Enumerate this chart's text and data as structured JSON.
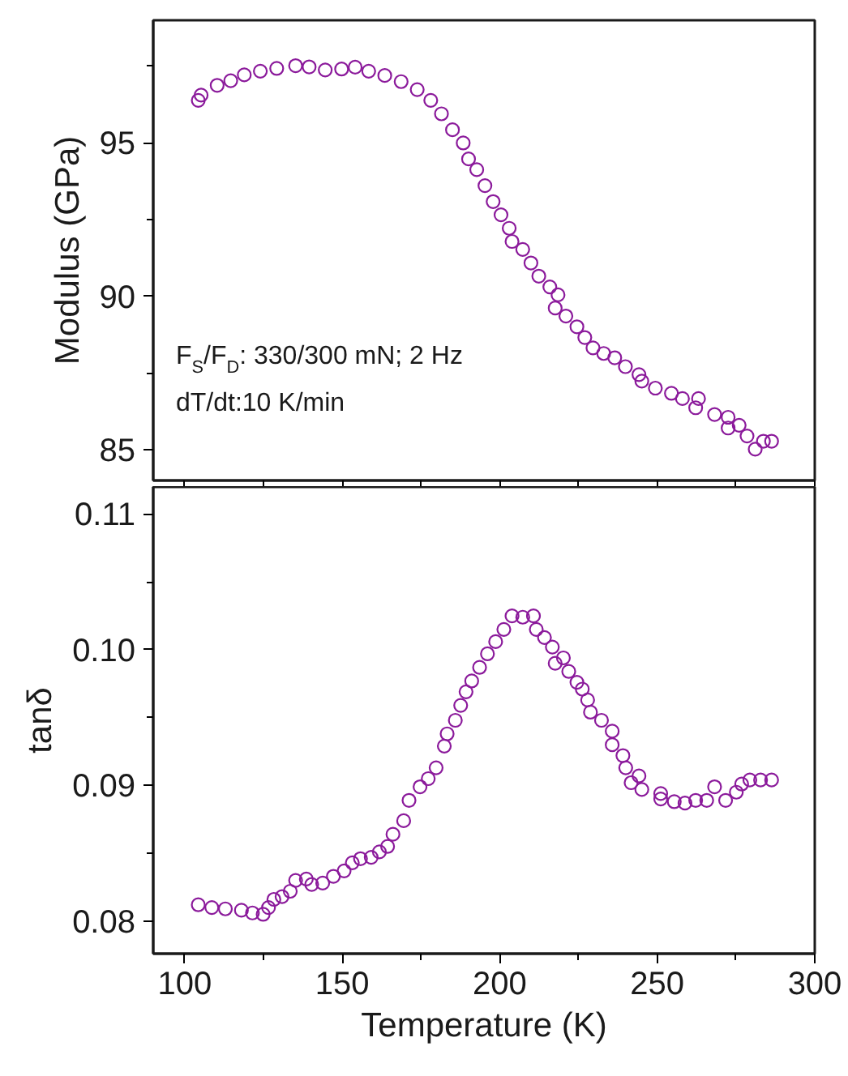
{
  "chart_data": [
    {
      "type": "scatter",
      "ylabel": "Modulus (GPa)",
      "marker": "circle",
      "tick_labels": "y",
      "xlim": [
        90,
        300
      ],
      "ylim": [
        84,
        99
      ],
      "xticks": [
        {
          "value": 100,
          "label": null
        },
        {
          "value": 125,
          "label": null
        },
        {
          "value": 150,
          "label": null
        },
        {
          "value": 175,
          "label": null
        },
        {
          "value": 200,
          "label": null
        },
        {
          "value": 225,
          "label": null
        },
        {
          "value": 250,
          "label": null
        },
        {
          "value": 275,
          "label": null
        },
        {
          "value": 300,
          "label": null
        }
      ],
      "yticks": [
        85,
        {
          "value": 87.5,
          "label": null
        },
        90,
        {
          "value": 92.5,
          "label": null
        },
        95,
        {
          "value": 97.5,
          "label": null
        }
      ],
      "annotations": [
        "F$_{S}$/F$_{D}$: 330/300 mN; 2 Hz",
        "dT/dt:10 K/min"
      ],
      "x": [
        104.3,
        105.2,
        110.3,
        114.6,
        118.9,
        124.0,
        129.2,
        135.2,
        139.5,
        144.6,
        149.8,
        154.1,
        158.4,
        163.5,
        168.7,
        173.8,
        178.1,
        181.5,
        185.0,
        188.4,
        190.1,
        192.7,
        195.3,
        197.9,
        200.4,
        203.0,
        203.9,
        207.3,
        209.9,
        212.4,
        215.9,
        218.5,
        217.6,
        221.0,
        224.5,
        227.0,
        229.6,
        233.0,
        236.5,
        239.9,
        244.2,
        245.1,
        249.4,
        254.5,
        258.0,
        262.2,
        263.1,
        268.2,
        272.5,
        272.5,
        276.0,
        278.5,
        281.1,
        283.7,
        286.3
      ],
      "series": [
        {
          "color": "#8b1a9b",
          "values": [
            96.39,
            96.56,
            96.88,
            97.03,
            97.22,
            97.34,
            97.43,
            97.52,
            97.48,
            97.38,
            97.41,
            97.47,
            97.34,
            97.2,
            97.0,
            96.74,
            96.39,
            95.95,
            95.43,
            95.0,
            94.48,
            94.13,
            93.61,
            93.09,
            92.66,
            92.22,
            91.79,
            91.53,
            91.09,
            90.66,
            90.31,
            90.05,
            89.62,
            89.36,
            89.01,
            88.66,
            88.32,
            88.14,
            88.0,
            87.71,
            87.45,
            87.24,
            87.01,
            86.84,
            86.67,
            86.37,
            86.67,
            86.15,
            86.06,
            85.71,
            85.8,
            85.45,
            85.02,
            85.28,
            85.28
          ]
        }
      ]
    },
    {
      "type": "scatter",
      "xlabel": "Temperature (K)",
      "ylabel": "tanδ",
      "marker": "circle",
      "xlim": [
        90,
        300
      ],
      "ylim": [
        0.0776,
        0.112
      ],
      "xticks": [
        100,
        {
          "value": 125,
          "label": null
        },
        150,
        {
          "value": 175,
          "label": null
        },
        200,
        {
          "value": 225,
          "label": null
        },
        250,
        {
          "value": 275,
          "label": null
        },
        300
      ],
      "yticks": [
        {
          "value": 0.08,
          "label": "0.08"
        },
        {
          "value": 0.085,
          "label": null
        },
        {
          "value": 0.09,
          "label": "0.09"
        },
        {
          "value": 0.095,
          "label": null
        },
        {
          "value": 0.1,
          "label": "0.10"
        },
        {
          "value": 0.105,
          "label": null
        },
        {
          "value": 0.11,
          "label": "0.11"
        }
      ],
      "x": [
        104.3,
        108.6,
        112.9,
        118.0,
        121.5,
        124.9,
        126.6,
        128.3,
        130.9,
        133.5,
        135.2,
        138.6,
        140.3,
        143.8,
        147.2,
        150.6,
        153.2,
        155.8,
        159.2,
        161.8,
        164.4,
        166.1,
        169.5,
        171.2,
        174.7,
        177.3,
        179.8,
        182.4,
        183.3,
        185.9,
        187.6,
        189.3,
        191.1,
        193.6,
        196.1,
        198.7,
        201.3,
        203.9,
        207.3,
        210.7,
        211.6,
        214.2,
        216.7,
        217.6,
        220.2,
        221.9,
        224.5,
        226.2,
        227.9,
        228.8,
        232.3,
        235.7,
        235.7,
        239.1,
        240.0,
        241.7,
        244.2,
        245.1,
        251.1,
        251.1,
        255.4,
        258.8,
        262.2,
        265.7,
        268.2,
        271.7,
        275.1,
        276.8,
        279.4,
        282.8,
        286.3
      ],
      "series": [
        {
          "color": "#8b1a9b",
          "values": [
            0.0812,
            0.081,
            0.0809,
            0.0808,
            0.0806,
            0.0805,
            0.081,
            0.0816,
            0.0818,
            0.0822,
            0.083,
            0.0831,
            0.0827,
            0.0828,
            0.0833,
            0.0837,
            0.0843,
            0.0846,
            0.0847,
            0.0851,
            0.0855,
            0.0864,
            0.0874,
            0.0889,
            0.0899,
            0.0905,
            0.0913,
            0.0929,
            0.0938,
            0.0948,
            0.0959,
            0.0969,
            0.0977,
            0.0987,
            0.0997,
            0.1006,
            0.1015,
            0.1025,
            0.1024,
            0.1025,
            0.1015,
            0.1009,
            0.1002,
            0.099,
            0.0994,
            0.0984,
            0.0976,
            0.0971,
            0.0963,
            0.0954,
            0.0948,
            0.094,
            0.093,
            0.0922,
            0.0913,
            0.0902,
            0.0907,
            0.0897,
            0.0894,
            0.089,
            0.0888,
            0.0887,
            0.0889,
            0.0889,
            0.0899,
            0.0889,
            0.0895,
            0.0901,
            0.0904,
            0.0904,
            0.0904
          ]
        }
      ]
    }
  ]
}
